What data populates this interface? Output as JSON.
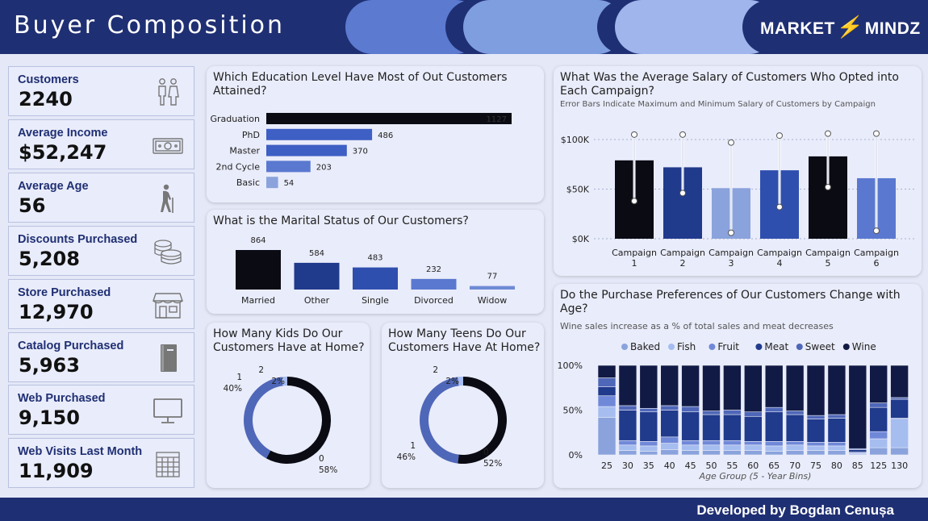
{
  "header": {
    "title": "Buyer Composition",
    "logo_left": "MARKET",
    "logo_right": "MINDZ"
  },
  "footer": {
    "credit": "Developed by Bogdan Cenușa"
  },
  "colors": {
    "navy": "#1f2f73",
    "black": "#0b0b14",
    "dark": "#203a8c",
    "mid": "#3e5fc4",
    "light": "#8aa3dc",
    "pale": "#a6bdf0"
  },
  "kpis": [
    {
      "label": "Customers",
      "value": "2240",
      "icon": "people-icon"
    },
    {
      "label": "Average Income",
      "value": "$52,247",
      "icon": "money-icon"
    },
    {
      "label": "Average Age",
      "value": "56",
      "icon": "elderly-icon"
    },
    {
      "label": "Discounts Purchased",
      "value": "5,208",
      "icon": "coins-icon"
    },
    {
      "label": "Store Purchased",
      "value": "12,970",
      "icon": "store-icon"
    },
    {
      "label": "Catalog Purchased",
      "value": "5,963",
      "icon": "catalog-icon"
    },
    {
      "label": "Web Purchased",
      "value": "9,150",
      "icon": "monitor-icon"
    },
    {
      "label": "Web Visits Last Month",
      "value": "11,909",
      "icon": "calendar-icon"
    }
  ],
  "chart_data": [
    {
      "id": "education",
      "type": "bar",
      "orientation": "horizontal",
      "title": "Which Education Level Have Most of Out Customers Attained?",
      "categories": [
        "Graduation",
        "PhD",
        "Master",
        "2nd Cycle",
        "Basic"
      ],
      "values": [
        1127,
        486,
        370,
        203,
        54
      ],
      "value_labels": [
        "1127",
        "486",
        "370",
        "203",
        "54"
      ],
      "colors": [
        "#0b0b14",
        "#3e5fc4",
        "#3e5fc4",
        "#5a78d0",
        "#8aa3dc"
      ]
    },
    {
      "id": "marital",
      "type": "bar",
      "title": "What is the Marital Status of Our Customers?",
      "categories": [
        "Married",
        "Other",
        "Single",
        "Divorced",
        "Widow"
      ],
      "values": [
        864,
        584,
        483,
        232,
        77
      ],
      "value_labels": [
        "864",
        "584",
        "483",
        "232",
        "77"
      ],
      "colors": [
        "#0b0b14",
        "#203a8c",
        "#2f4fae",
        "#5a78d0",
        "#6f8ad6"
      ]
    },
    {
      "id": "kids",
      "type": "pie",
      "donut": true,
      "title": "How Many Kids Do Our Customers Have at Home?",
      "slices": [
        {
          "label": "0",
          "value": 58,
          "pct": "58%",
          "color": "#0b0b14"
        },
        {
          "label": "1",
          "value": 40,
          "pct": "40%",
          "color": "#4f67b8"
        },
        {
          "label": "2",
          "value": 2,
          "pct": "2%",
          "color": "#a6bdf0"
        }
      ]
    },
    {
      "id": "teens",
      "type": "pie",
      "donut": true,
      "title": "How Many Teens Do Our Customers Have At Home?",
      "slices": [
        {
          "label": "0",
          "value": 52,
          "pct": "52%",
          "color": "#0b0b14"
        },
        {
          "label": "1",
          "value": 46,
          "pct": "46%",
          "color": "#4f67b8"
        },
        {
          "label": "2",
          "value": 2,
          "pct": "2%",
          "color": "#a6bdf0"
        }
      ]
    },
    {
      "id": "salary",
      "type": "bar",
      "title": "What Was the Average Salary of Customers Who Opted into Each Campaign?",
      "subtitle": "Error Bars Indicate Maximum and Minimum Salary of Customers by Campaign",
      "categories": [
        [
          "Campaign",
          "1"
        ],
        [
          "Campaign",
          "2"
        ],
        [
          "Campaign",
          "3"
        ],
        [
          "Campaign",
          "4"
        ],
        [
          "Campaign",
          "5"
        ],
        [
          "Campaign",
          "6"
        ]
      ],
      "values": [
        79000,
        72000,
        51000,
        69000,
        83000,
        61000
      ],
      "max": [
        105000,
        105000,
        97000,
        104000,
        106000,
        106000
      ],
      "min": [
        38000,
        46000,
        6000,
        32000,
        52000,
        8000
      ],
      "colors": [
        "#0b0b14",
        "#203a8c",
        "#8aa3dc",
        "#2f4fae",
        "#0b0b14",
        "#5a78d0"
      ],
      "ylim": [
        0,
        110000
      ],
      "yticks": [
        0,
        50000,
        100000
      ],
      "ytick_labels": [
        "$0K",
        "$50K",
        "$100K"
      ]
    },
    {
      "id": "preferences",
      "type": "bar",
      "stacked": "percent",
      "title": "Do the Purchase Preferences of Our Customers Change with Age?",
      "subtitle": "Wine sales increase as a % of total sales and meat decreases",
      "xlabel": "Age Group (5 - Year Bins)",
      "categories": [
        "25",
        "30",
        "35",
        "40",
        "45",
        "50",
        "55",
        "60",
        "65",
        "70",
        "75",
        "80",
        "85",
        "125",
        "130"
      ],
      "yticks": [
        0,
        50,
        100
      ],
      "ytick_labels": [
        "0%",
        "50%",
        "100%"
      ],
      "legend_position": "top",
      "series": [
        {
          "name": "Baked",
          "color": "#8aa3dc",
          "values": [
            42,
            5,
            4,
            6,
            5,
            5,
            5,
            5,
            4,
            5,
            5,
            5,
            1,
            8,
            8
          ]
        },
        {
          "name": "Fish",
          "color": "#a6bdf0",
          "values": [
            12,
            6,
            6,
            7,
            6,
            6,
            6,
            6,
            6,
            6,
            5,
            5,
            1,
            10,
            32
          ]
        },
        {
          "name": "Fruit",
          "color": "#7088d8",
          "values": [
            12,
            5,
            5,
            7,
            5,
            5,
            5,
            4,
            5,
            4,
            4,
            4,
            1,
            8,
            1
          ]
        },
        {
          "name": "Meat",
          "color": "#203a8c",
          "values": [
            10,
            34,
            33,
            30,
            32,
            29,
            29,
            28,
            33,
            30,
            26,
            27,
            3,
            27,
            21
          ]
        },
        {
          "name": "Sweet",
          "color": "#4f67b8",
          "values": [
            10,
            5,
            4,
            5,
            6,
            4,
            5,
            5,
            5,
            4,
            4,
            4,
            1,
            5,
            2
          ]
        },
        {
          "name": "Wine",
          "color": "#111a44",
          "values": [
            14,
            45,
            48,
            45,
            46,
            51,
            50,
            52,
            47,
            51,
            56,
            55,
            93,
            42,
            36
          ]
        }
      ]
    }
  ]
}
